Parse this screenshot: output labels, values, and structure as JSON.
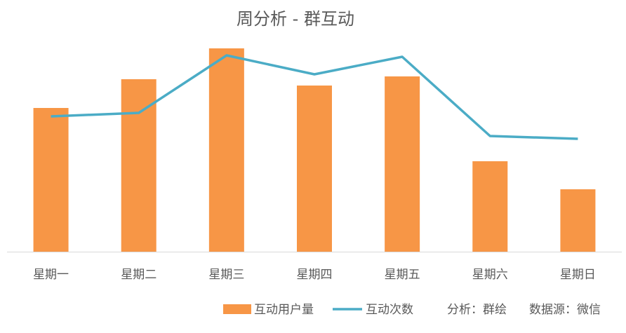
{
  "chart_data": {
    "type": "bar",
    "title": "周分析 - 群互动",
    "categories": [
      "星期一",
      "星期二",
      "星期三",
      "星期四",
      "星期五",
      "星期六",
      "星期日"
    ],
    "series": [
      {
        "name": "互动用户量",
        "kind": "bar",
        "values": [
          205,
          246,
          290,
          237,
          250,
          129,
          89
        ]
      },
      {
        "name": "互动次数",
        "kind": "line",
        "values": [
          193,
          198,
          280,
          253,
          278,
          165,
          161
        ]
      }
    ],
    "ylim": [
      0,
      300
    ],
    "grid": false,
    "legend_position": "bottom-right",
    "colors": {
      "bar": "#F79646",
      "line": "#4BACC6",
      "axis": "#D9D9D9",
      "text": "#595959"
    }
  },
  "footer": {
    "analysis": "分析：群绘",
    "source": "数据源：微信"
  }
}
